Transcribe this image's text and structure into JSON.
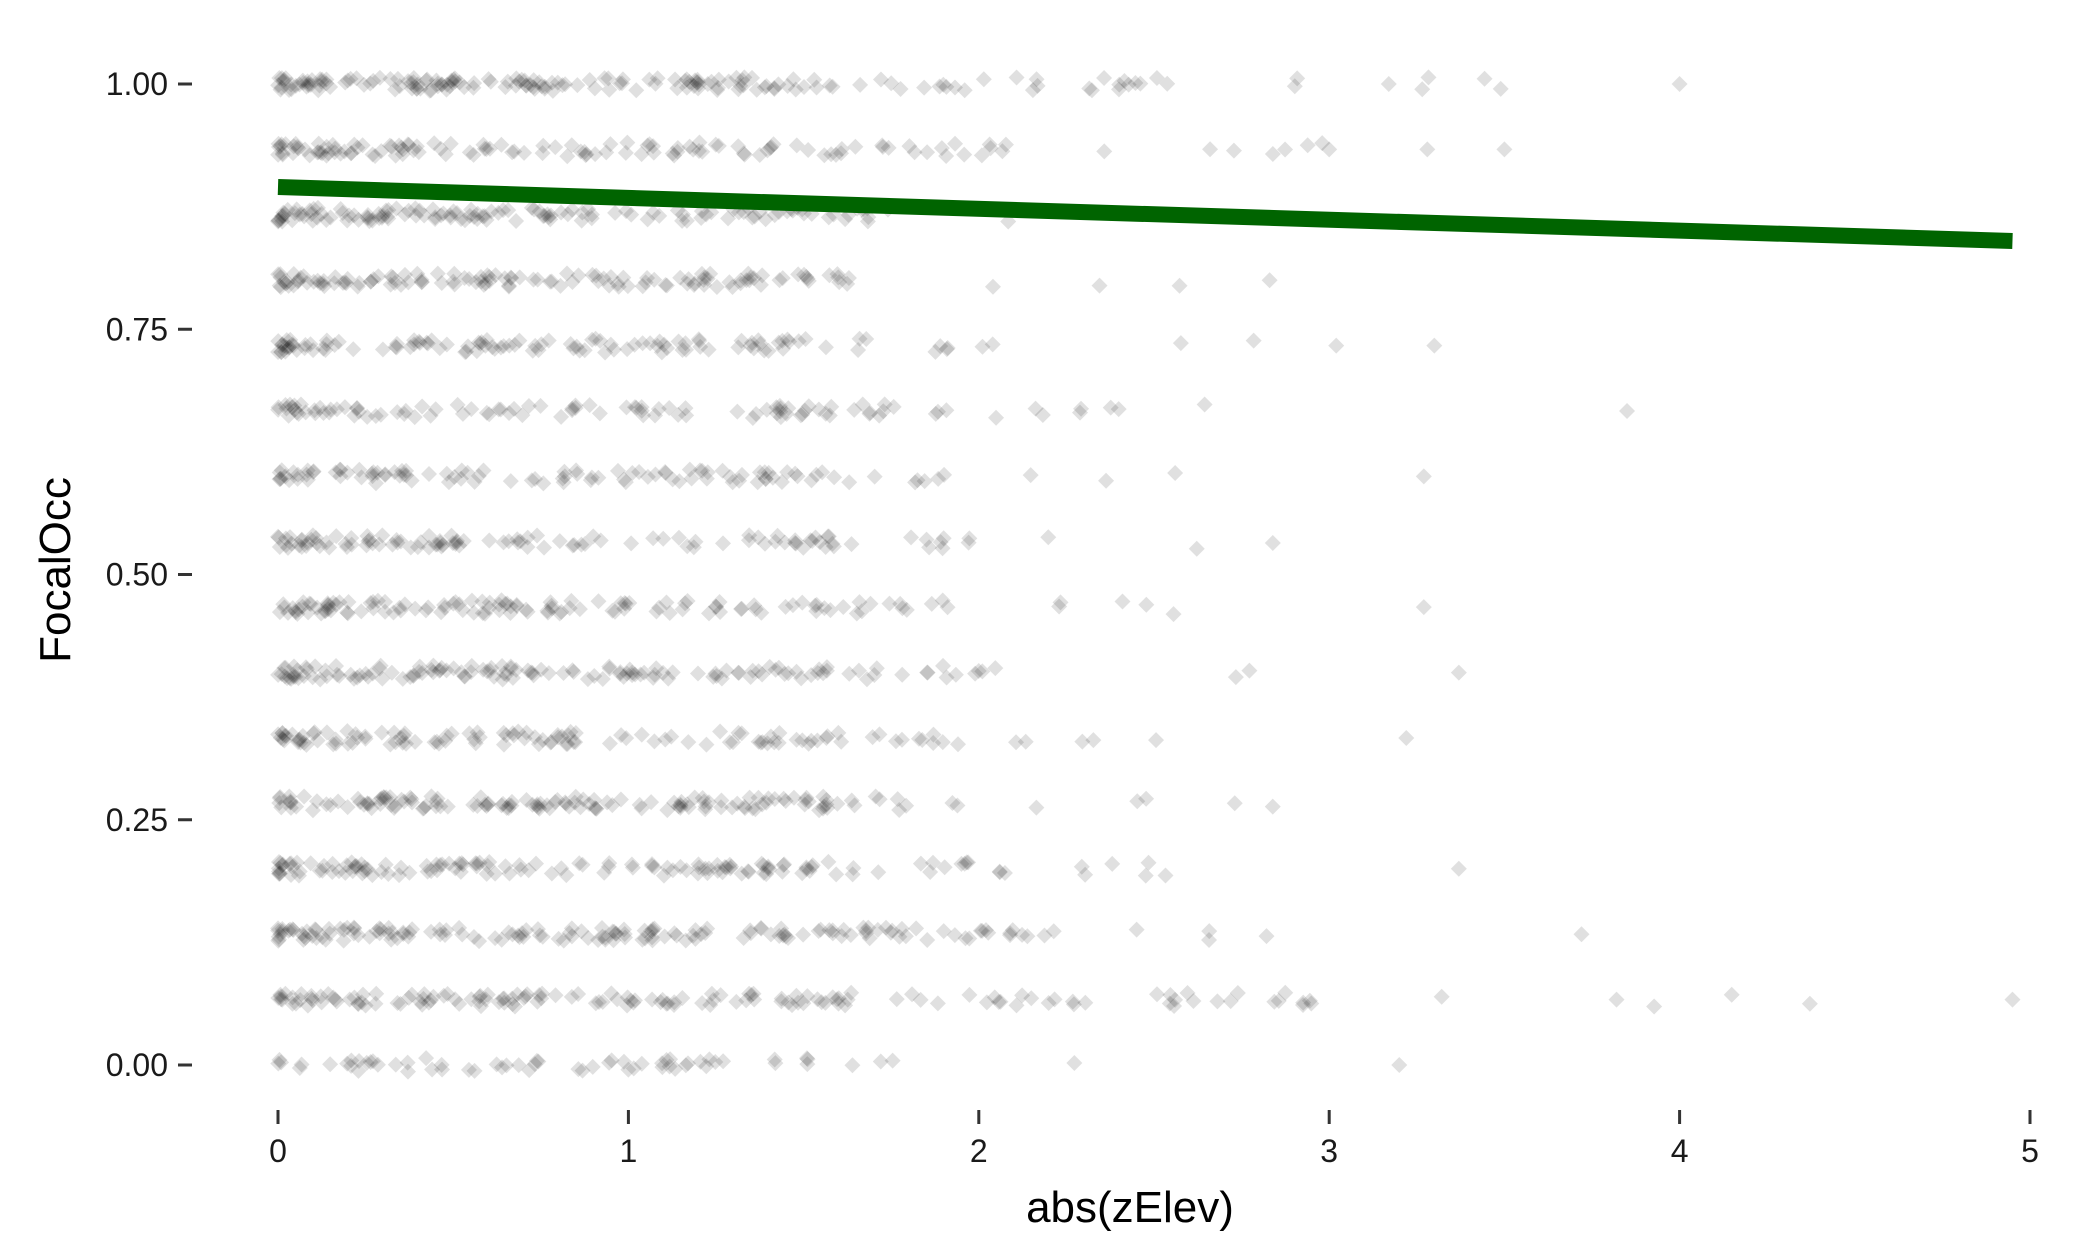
{
  "chart_data": {
    "type": "scatter",
    "title": "",
    "xlabel": "abs(zElev)",
    "ylabel": "FocalOcc",
    "xlim": [
      -0.1,
      5.05
    ],
    "ylim": [
      -0.04,
      1.04
    ],
    "x_ticks": [
      0,
      1,
      2,
      3,
      4,
      5
    ],
    "x_tick_labels": [
      "0",
      "1",
      "2",
      "3",
      "4",
      "5"
    ],
    "y_ticks": [
      0,
      0.25,
      0.5,
      0.75,
      1
    ],
    "y_tick_labels": [
      "0.00",
      "0.25",
      "0.50",
      "0.75",
      "1.00"
    ],
    "grid": false,
    "legend": "none",
    "point_shape": "diamond",
    "point_color": "#000000",
    "point_alpha": 0.12,
    "line_color": "#006400",
    "y_levels": [
      0,
      0.0667,
      0.1333,
      0.2,
      0.2667,
      0.3333,
      0.4,
      0.4667,
      0.5333,
      0.6,
      0.6667,
      0.7333,
      0.8,
      0.8667,
      0.9333,
      1.0
    ],
    "points_per_level": [
      40,
      110,
      110,
      90,
      90,
      80,
      90,
      80,
      70,
      65,
      70,
      75,
      80,
      85,
      90,
      120
    ],
    "x_extent_per_level": [
      2.85,
      4.9,
      3.7,
      3.35,
      3.2,
      3.2,
      3.35,
      3.2,
      3.2,
      3.2,
      3.85,
      3.3,
      2.9,
      2.8,
      3.5,
      4.0
    ],
    "sparse_points": [
      {
        "x": 4.0,
        "y": 1.0
      },
      {
        "x": 3.17,
        "y": 1.0
      },
      {
        "x": 3.0,
        "y": 0.9333
      },
      {
        "x": 3.28,
        "y": 0.9333
      },
      {
        "x": 3.5,
        "y": 0.9333
      },
      {
        "x": 2.83,
        "y": 0.8
      },
      {
        "x": 3.02,
        "y": 0.7333
      },
      {
        "x": 3.3,
        "y": 0.7333
      },
      {
        "x": 3.85,
        "y": 0.6667
      },
      {
        "x": 3.27,
        "y": 0.6
      },
      {
        "x": 3.27,
        "y": 0.4667
      },
      {
        "x": 3.37,
        "y": 0.4
      },
      {
        "x": 3.22,
        "y": 0.3333
      },
      {
        "x": 3.37,
        "y": 0.2
      },
      {
        "x": 3.72,
        "y": 0.1333
      },
      {
        "x": 3.82,
        "y": 0.0667
      },
      {
        "x": 4.95,
        "y": 0.0667
      },
      {
        "x": 3.2,
        "y": 0.0
      }
    ],
    "fit_line": {
      "x": [
        0,
        4.95
      ],
      "y": [
        0.895,
        0.84
      ]
    }
  }
}
